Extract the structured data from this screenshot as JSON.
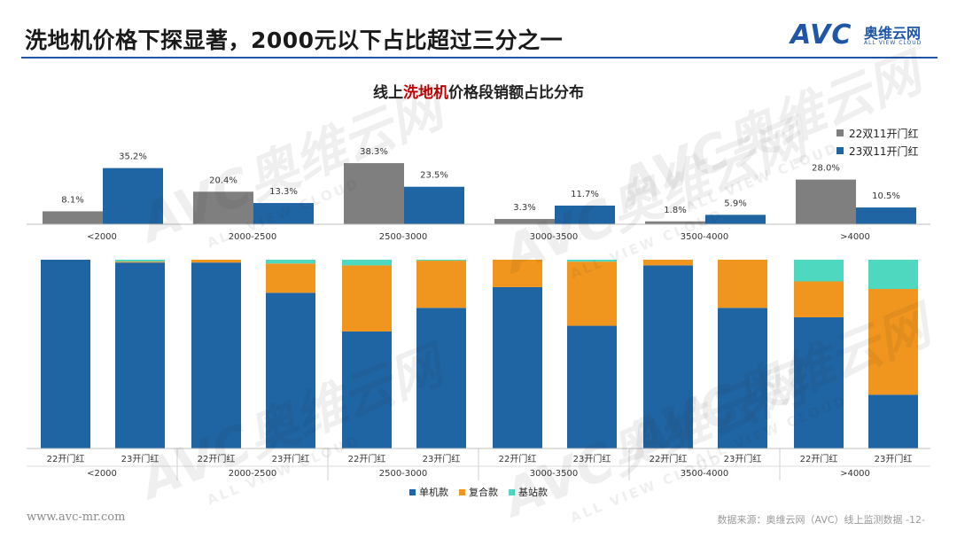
{
  "header": {
    "title": "洗地机价格下探显著，2000元以下占比超过三分之一",
    "logo_brand": "AVC",
    "logo_cn": "奥维云网",
    "logo_en": "ALL VIEW CLOUD"
  },
  "chart_title": {
    "prefix": "线上",
    "highlight": "洗地机",
    "suffix": "价格段销额占比分布"
  },
  "footer": {
    "website": "www.avc-mr.com",
    "source": "数据来源：奥维云网（AVC）线上监测数据  -12-"
  },
  "watermark": {
    "brand": "AVC奥维云网",
    "sub": "ALL VIEW CLOUD"
  },
  "colors": {
    "grey": "#7f7f7f",
    "blue": "#1f64a3",
    "orange": "#f0961e",
    "teal": "#4dd8bf",
    "accent_title": "#c00000"
  },
  "chart_data": [
    {
      "type": "bar",
      "title": "线上洗地机价格段销额占比分布",
      "categories": [
        "<2000",
        "2000-2500",
        "2500-3000",
        "3000-3500",
        "3500-4000",
        ">4000"
      ],
      "series": [
        {
          "name": "22双11开门红",
          "values": [
            8.1,
            20.4,
            38.3,
            3.3,
            1.8,
            28.0
          ],
          "labels": [
            "8.1%",
            "20.4%",
            "38.3%",
            "3.3%",
            "1.8%",
            "28.0%"
          ]
        },
        {
          "name": "23双11开门红",
          "values": [
            35.2,
            13.3,
            23.5,
            11.7,
            5.9,
            10.5
          ],
          "labels": [
            "35.2%",
            "13.3%",
            "23.5%",
            "11.7%",
            "5.9%",
            "10.5%"
          ]
        }
      ],
      "unit": "%",
      "ylim": [
        0,
        40
      ],
      "legend_position": "top-right",
      "grid": false
    },
    {
      "type": "bar",
      "stacked": "100%",
      "categories": [
        "<2000",
        "2000-2500",
        "2500-3000",
        "3000-3500",
        "3500-4000",
        ">4000"
      ],
      "sub_categories": [
        "22开门红",
        "23开门红"
      ],
      "series": [
        {
          "name": "单机款",
          "values": [
            [
              100,
              98.5
            ],
            [
              98.5,
              82.5
            ],
            [
              62,
              74.5
            ],
            [
              85.5,
              65
            ],
            [
              97,
              74.5
            ],
            [
              69.5,
              28.5
            ]
          ]
        },
        {
          "name": "复合款",
          "values": [
            [
              0,
              0.5
            ],
            [
              1.5,
              15.5
            ],
            [
              35,
              25
            ],
            [
              14.5,
              34
            ],
            [
              3,
              25.5
            ],
            [
              19,
              56
            ]
          ]
        },
        {
          "name": "基站款",
          "values": [
            [
              0,
              1
            ],
            [
              0,
              2
            ],
            [
              3,
              0.5
            ],
            [
              0,
              1
            ],
            [
              0,
              0
            ],
            [
              11.5,
              15.5
            ]
          ]
        }
      ],
      "ylim": [
        0,
        100
      ],
      "legend_position": "bottom",
      "grid": false
    }
  ]
}
